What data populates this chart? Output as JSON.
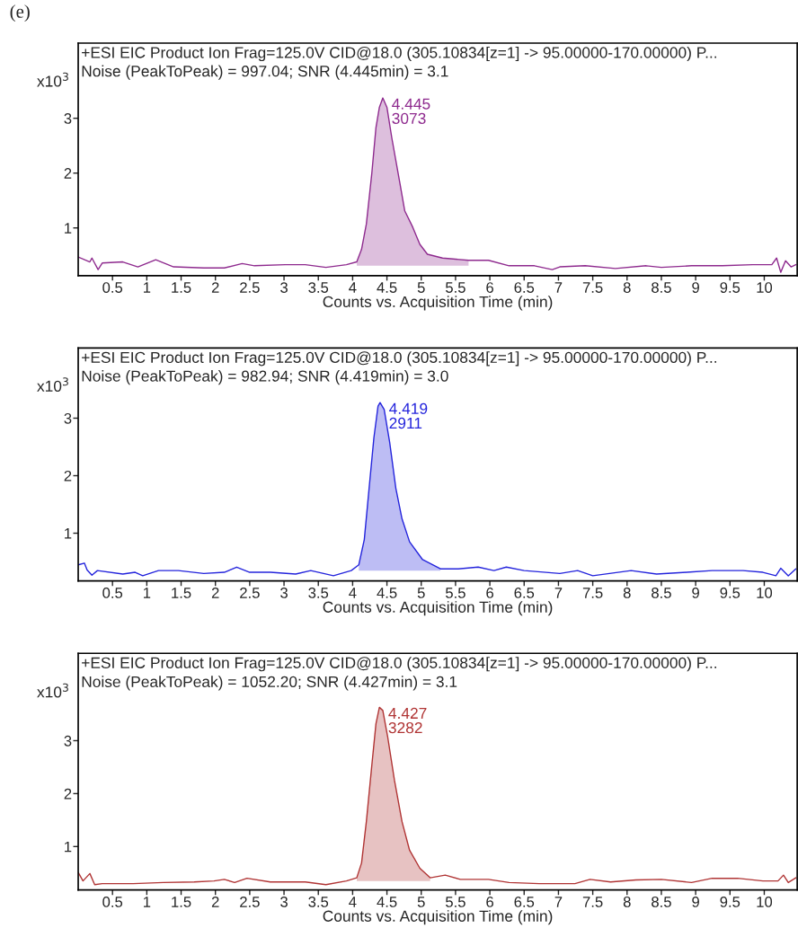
{
  "chart_data": [
    {
      "type": "line",
      "title": "+ESI EIC Product Ion Frag=125.0V CID@18.0 (305.10834[z=1] -> 95.00000-170.00000) P...",
      "subtitle": "Noise (PeakToPeak) = 997.04; SNR (4.445min) = 3.1",
      "xlabel": "Counts vs. Acquisition Time (min)",
      "ylabel": "x10$^{3}$",
      "annotations": [
        "(e)",
        {
          "text": "4.445\n3073",
          "x": 4.44,
          "y": 3.37
        }
      ],
      "x": [
        0.0,
        0.17,
        0.2,
        0.29,
        0.35,
        0.65,
        0.87,
        1.13,
        1.39,
        1.83,
        2.13,
        2.39,
        2.57,
        3.02,
        3.31,
        3.61,
        3.91,
        4.06,
        4.13,
        4.2,
        4.28,
        4.34,
        4.39,
        4.44,
        4.5,
        4.57,
        4.69,
        4.76,
        4.87,
        4.98,
        5.09,
        5.31,
        5.69,
        5.98,
        6.28,
        6.65,
        6.91,
        7.02,
        7.39,
        7.83,
        8.28,
        8.5,
        8.94,
        9.39,
        9.83,
        10.11,
        10.18,
        10.24,
        10.31,
        10.39,
        10.46
      ],
      "series": [
        {
          "color": "#8e2a8e",
          "values": [
            0.47,
            0.38,
            0.45,
            0.24,
            0.36,
            0.38,
            0.29,
            0.42,
            0.29,
            0.27,
            0.27,
            0.35,
            0.31,
            0.33,
            0.33,
            0.28,
            0.33,
            0.38,
            0.61,
            1.07,
            2.0,
            2.83,
            3.2,
            3.37,
            3.2,
            2.65,
            1.81,
            1.31,
            1.03,
            0.7,
            0.52,
            0.45,
            0.41,
            0.41,
            0.31,
            0.31,
            0.24,
            0.29,
            0.31,
            0.26,
            0.31,
            0.28,
            0.31,
            0.31,
            0.33,
            0.33,
            0.45,
            0.19,
            0.4,
            0.29,
            0.33
          ],
          "lower": [
            null,
            null,
            null,
            null,
            null,
            null,
            null,
            null,
            null,
            null,
            null,
            null,
            null,
            null,
            null,
            null,
            null,
            0.31,
            0.31,
            0.31,
            0.31,
            0.31,
            0.31,
            0.31,
            0.31,
            0.31,
            0.31,
            0.31,
            0.31,
            0.31,
            0.31,
            0.31,
            0.31,
            null,
            null,
            null,
            null,
            null,
            null,
            null,
            null,
            null,
            null,
            null,
            null,
            null,
            null,
            null,
            null,
            null,
            null
          ],
          "upper": [
            null,
            null,
            null,
            null,
            null,
            null,
            null,
            null,
            null,
            null,
            null,
            null,
            null,
            null,
            null,
            null,
            null,
            0.38,
            0.61,
            1.07,
            2.0,
            2.83,
            3.2,
            3.37,
            3.2,
            2.65,
            1.81,
            1.31,
            1.03,
            0.7,
            0.52,
            0.45,
            0.41,
            null,
            null,
            null,
            null,
            null,
            null,
            null,
            null,
            null,
            null,
            null,
            null,
            null,
            null,
            null,
            null,
            null,
            null
          ]
        }
      ],
      "xlim": [
        0,
        10.48
      ],
      "ylim": [
        0.13,
        4.37
      ],
      "xticks": [
        0.5,
        1,
        1.5,
        2,
        2.5,
        3,
        3.5,
        4,
        4.5,
        5,
        5.5,
        6,
        6.5,
        7,
        7.5,
        8,
        8.5,
        9,
        9.5,
        10
      ],
      "yticks": [
        1,
        2,
        3
      ],
      "grid": false
    },
    {
      "type": "line",
      "title": "+ESI EIC Product Ion Frag=125.0V CID@18.0 (305.10834[z=1] -> 95.00000-170.00000) P...",
      "subtitle": "Noise (PeakToPeak) = 982.94; SNR (4.419min) = 3.0",
      "xlabel": "Counts vs. Acquisition Time (min)",
      "ylabel": "x10$^{3}$",
      "annotations": [
        {
          "text": "4.419\n2911",
          "x": 4.4,
          "y": 3.27
        }
      ],
      "x": [
        0.0,
        0.09,
        0.13,
        0.2,
        0.28,
        0.65,
        0.83,
        0.94,
        1.17,
        1.46,
        1.83,
        2.13,
        2.31,
        2.5,
        2.8,
        3.17,
        3.39,
        3.72,
        3.98,
        4.09,
        4.17,
        4.24,
        4.31,
        4.37,
        4.4,
        4.46,
        4.54,
        4.63,
        4.72,
        4.83,
        5.02,
        5.28,
        5.54,
        5.83,
        6.06,
        6.24,
        6.5,
        7.02,
        7.28,
        7.5,
        8.06,
        8.43,
        8.87,
        9.24,
        9.69,
        9.98,
        10.17,
        10.24,
        10.35,
        10.46
      ],
      "series": [
        {
          "color": "#2424dc",
          "values": [
            0.45,
            0.48,
            0.36,
            0.27,
            0.35,
            0.29,
            0.32,
            0.26,
            0.35,
            0.35,
            0.3,
            0.32,
            0.41,
            0.32,
            0.32,
            0.29,
            0.35,
            0.26,
            0.35,
            0.45,
            0.89,
            1.78,
            2.66,
            3.21,
            3.27,
            3.15,
            2.58,
            1.78,
            1.25,
            0.85,
            0.54,
            0.38,
            0.38,
            0.41,
            0.35,
            0.41,
            0.35,
            0.3,
            0.35,
            0.26,
            0.35,
            0.29,
            0.32,
            0.35,
            0.35,
            0.32,
            0.26,
            0.39,
            0.26,
            0.38
          ],
          "lower": [
            null,
            null,
            null,
            null,
            null,
            null,
            null,
            null,
            null,
            null,
            null,
            null,
            null,
            null,
            null,
            null,
            null,
            null,
            null,
            0.35,
            0.35,
            0.35,
            0.35,
            0.35,
            0.35,
            0.35,
            0.35,
            0.35,
            0.35,
            0.35,
            0.35,
            0.35,
            null,
            null,
            null,
            null,
            null,
            null,
            null,
            null,
            null,
            null,
            null,
            null,
            null,
            null,
            null,
            null,
            null,
            null
          ],
          "upper": [
            null,
            null,
            null,
            null,
            null,
            null,
            null,
            null,
            null,
            null,
            null,
            null,
            null,
            null,
            null,
            null,
            null,
            null,
            null,
            0.45,
            0.89,
            1.78,
            2.66,
            3.21,
            3.27,
            3.15,
            2.58,
            1.78,
            1.25,
            0.85,
            0.54,
            0.38,
            null,
            null,
            null,
            null,
            null,
            null,
            null,
            null,
            null,
            null,
            null,
            null,
            null,
            null,
            null,
            null,
            null,
            null
          ]
        }
      ],
      "xlim": [
        0,
        10.48
      ],
      "ylim": [
        0.17,
        4.22
      ],
      "xticks": [
        0.5,
        1,
        1.5,
        2,
        2.5,
        3,
        3.5,
        4,
        4.5,
        5,
        5.5,
        6,
        6.5,
        7,
        7.5,
        8,
        8.5,
        9,
        9.5,
        10
      ],
      "yticks": [
        1,
        2,
        3
      ],
      "grid": false
    },
    {
      "type": "line",
      "title": "+ESI EIC Product Ion Frag=125.0V CID@18.0 (305.10834[z=1] -> 95.00000-170.00000) P...",
      "subtitle": "Noise (PeakToPeak) = 1052.20; SNR (4.427min) = 3.1",
      "xlabel": "Counts vs. Acquisition Time (min)",
      "ylabel": "x10$^{3}$",
      "annotations": [
        {
          "text": "4.427\n3282",
          "x": 4.39,
          "y": 3.63
        }
      ],
      "x": [
        0.0,
        0.07,
        0.17,
        0.24,
        0.35,
        0.8,
        1.24,
        1.69,
        1.98,
        2.13,
        2.28,
        2.46,
        2.8,
        3.31,
        3.61,
        3.91,
        4.06,
        4.13,
        4.2,
        4.28,
        4.34,
        4.39,
        4.44,
        4.51,
        4.61,
        4.72,
        4.83,
        4.98,
        5.13,
        5.35,
        5.57,
        5.98,
        6.28,
        6.72,
        7.24,
        7.46,
        7.76,
        8.13,
        8.5,
        8.94,
        9.24,
        9.61,
        9.98,
        10.2,
        10.28,
        10.35,
        10.46
      ],
      "series": [
        {
          "color": "#b03434",
          "values": [
            0.51,
            0.35,
            0.49,
            0.28,
            0.3,
            0.3,
            0.32,
            0.33,
            0.35,
            0.38,
            0.32,
            0.4,
            0.33,
            0.33,
            0.28,
            0.35,
            0.41,
            0.69,
            1.47,
            2.54,
            3.32,
            3.63,
            3.57,
            3.08,
            2.25,
            1.47,
            0.93,
            0.59,
            0.41,
            0.46,
            0.38,
            0.38,
            0.32,
            0.3,
            0.3,
            0.38,
            0.33,
            0.37,
            0.38,
            0.32,
            0.4,
            0.4,
            0.35,
            0.35,
            0.46,
            0.32,
            0.41
          ],
          "lower": [
            null,
            null,
            null,
            null,
            null,
            null,
            null,
            null,
            null,
            null,
            null,
            null,
            null,
            null,
            null,
            null,
            0.35,
            0.35,
            0.35,
            0.35,
            0.35,
            0.35,
            0.35,
            0.35,
            0.35,
            0.35,
            0.35,
            0.35,
            0.35,
            null,
            null,
            null,
            null,
            null,
            null,
            null,
            null,
            null,
            null,
            null,
            null,
            null,
            null,
            null,
            null,
            null,
            null
          ],
          "upper": [
            null,
            null,
            null,
            null,
            null,
            null,
            null,
            null,
            null,
            null,
            null,
            null,
            null,
            null,
            null,
            null,
            0.41,
            0.69,
            1.47,
            2.54,
            3.32,
            3.63,
            3.57,
            3.08,
            2.25,
            1.47,
            0.93,
            0.59,
            0.41,
            null,
            null,
            null,
            null,
            null,
            null,
            null,
            null,
            null,
            null,
            null,
            null,
            null,
            null,
            null,
            null,
            null,
            null
          ]
        }
      ],
      "xlim": [
        0,
        10.48
      ],
      "ylim": [
        0.18,
        4.65
      ],
      "xticks": [
        0.5,
        1,
        1.5,
        2,
        2.5,
        3,
        3.5,
        4,
        4.5,
        5,
        5.5,
        6,
        6.5,
        7,
        7.5,
        8,
        8.5,
        9,
        9.5,
        10
      ],
      "yticks": [
        1,
        2,
        3
      ],
      "grid": false
    }
  ]
}
